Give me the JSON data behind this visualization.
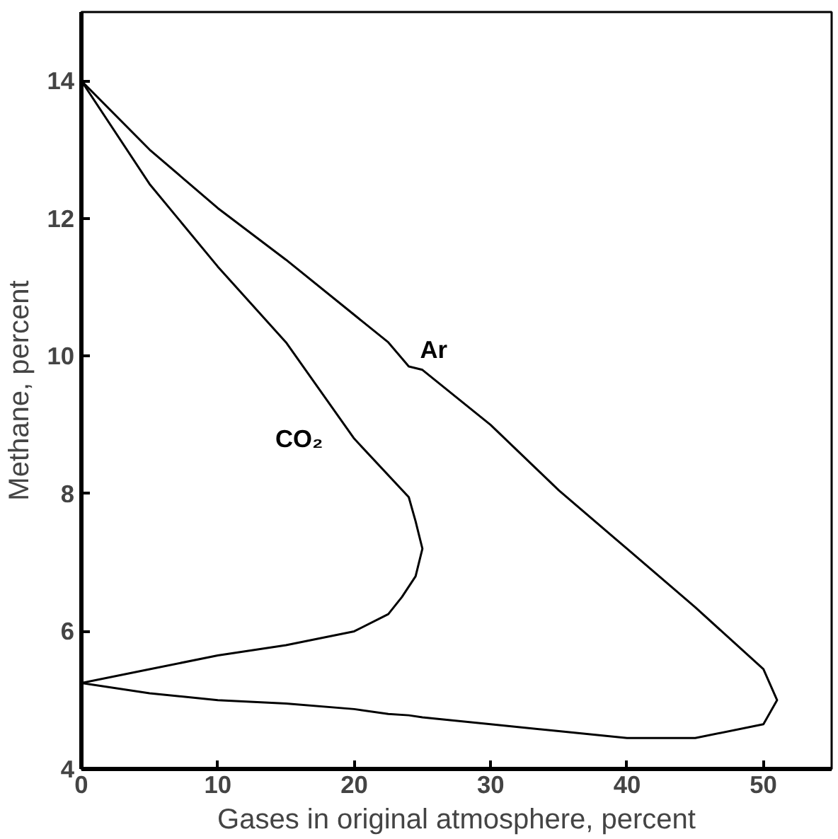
{
  "chart_data": {
    "type": "line",
    "xlabel": "Gases in original atmosphere, percent",
    "ylabel": "Methane, percent",
    "xlim": [
      0,
      55
    ],
    "ylim": [
      4,
      15
    ],
    "xticks": [
      0,
      10,
      20,
      30,
      40,
      50
    ],
    "yticks": [
      4,
      6,
      8,
      10,
      12,
      14
    ],
    "grid": false,
    "marker": "none",
    "line_style": "solid",
    "series": [
      {
        "name": "Ar",
        "color": "#000000",
        "x": [
          0,
          5,
          10,
          15,
          20,
          22.5,
          24,
          25,
          30,
          35,
          40,
          45,
          50,
          51,
          50,
          45,
          40,
          35,
          30,
          25,
          24,
          22.5,
          20,
          15,
          10,
          5,
          0
        ],
        "values": [
          14,
          13,
          12.15,
          11.4,
          10.6,
          10.2,
          9.85,
          9.8,
          9.0,
          8.05,
          7.2,
          6.35,
          5.45,
          5.0,
          4.65,
          4.45,
          4.45,
          4.55,
          4.65,
          4.75,
          4.78,
          4.8,
          4.87,
          4.95,
          5.0,
          5.1,
          5.25
        ]
      },
      {
        "name": "CO₂",
        "color": "#000000",
        "x": [
          0,
          5,
          10,
          15,
          20,
          24,
          24.5,
          25,
          24.5,
          23.5,
          22.5,
          20,
          15,
          10,
          5,
          0
        ],
        "values": [
          14,
          12.5,
          11.3,
          10.2,
          8.8,
          7.95,
          7.6,
          7.2,
          6.8,
          6.5,
          6.25,
          6.0,
          5.8,
          5.65,
          5.45,
          5.25
        ]
      }
    ]
  }
}
